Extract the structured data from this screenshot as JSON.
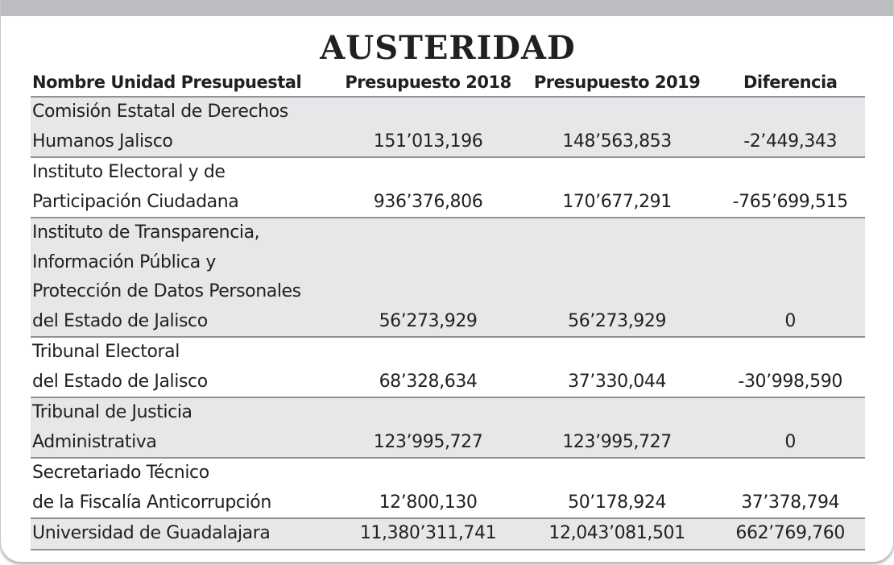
{
  "title": "AUSTERIDAD",
  "headers": {
    "name": "Nombre Unidad Presupuestal",
    "budget_2018": "Presupuesto 2018",
    "budget_2019": "Presupuesto 2019",
    "difference": "Diferencia"
  },
  "rows": [
    {
      "name_lines": [
        "Comisión Estatal de Derechos",
        "Humanos Jalisco"
      ],
      "budget_2018": "151’013,196",
      "budget_2019": "148’563,853",
      "difference": "-2’449,343"
    },
    {
      "name_lines": [
        "Instituto Electoral y de",
        "Participación Ciudadana"
      ],
      "budget_2018": "936’376,806",
      "budget_2019": "170’677,291",
      "difference": "-765’699,515"
    },
    {
      "name_lines": [
        "Instituto de Transparencia,",
        "Información Pública y",
        "Protección de Datos Personales",
        "del Estado de Jalisco"
      ],
      "budget_2018": "56’273,929",
      "budget_2019": "56’273,929",
      "difference": "0"
    },
    {
      "name_lines": [
        "Tribunal Electoral",
        "del Estado de Jalisco"
      ],
      "budget_2018": "68’328,634",
      "budget_2019": "37’330,044",
      "difference": "-30’998,590"
    },
    {
      "name_lines": [
        "Tribunal de Justicia",
        "Administrativa"
      ],
      "budget_2018": "123’995,727",
      "budget_2019": "123’995,727",
      "difference": "0"
    },
    {
      "name_lines": [
        "Secretariado Técnico",
        "de la Fiscalía Anticorrupción"
      ],
      "budget_2018": "12’800,130",
      "budget_2019": "50’178,924",
      "difference": "37’378,794"
    },
    {
      "name_lines": [
        "Universidad de Guadalajara"
      ],
      "budget_2018": "11,380’311,741",
      "budget_2019": "12,043’081,501",
      "difference": "662’769,760"
    }
  ]
}
